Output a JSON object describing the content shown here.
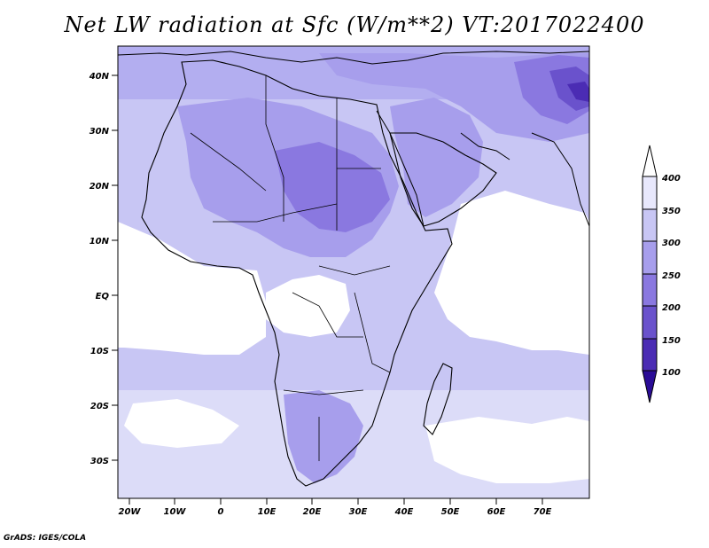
{
  "title": "Net LW radiation at Sfc (W/m**2) VT:2017022400",
  "credit": "GrADS: IGES/COLA",
  "map": {
    "lon_range": [
      -23,
      80
    ],
    "lat_range": [
      -37,
      46
    ],
    "lon_ticks": [
      "20W",
      "10W",
      "0",
      "10E",
      "20E",
      "30E",
      "40E",
      "50E",
      "60E",
      "70E"
    ],
    "lat_ticks": [
      "40N",
      "30N",
      "20N",
      "10N",
      "EQ",
      "10S",
      "20S",
      "30S"
    ],
    "colors": {
      "c400": "#e8e8fc",
      "c350": "#c8c6f4",
      "c300": "#a79eec",
      "c250": "#8a78e0",
      "c200": "#6a52cc",
      "c150": "#4b2cb4",
      "c100": "#2a0c96",
      "blank": "#ffffff"
    }
  },
  "colorbar": {
    "labels": [
      "400",
      "350",
      "300",
      "250",
      "200",
      "150",
      "100"
    ],
    "colors": [
      "#ffffff",
      "#e8e8fc",
      "#c8c6f4",
      "#a79eec",
      "#8a78e0",
      "#6a52cc",
      "#4b2cb4",
      "#2a0c96"
    ]
  }
}
